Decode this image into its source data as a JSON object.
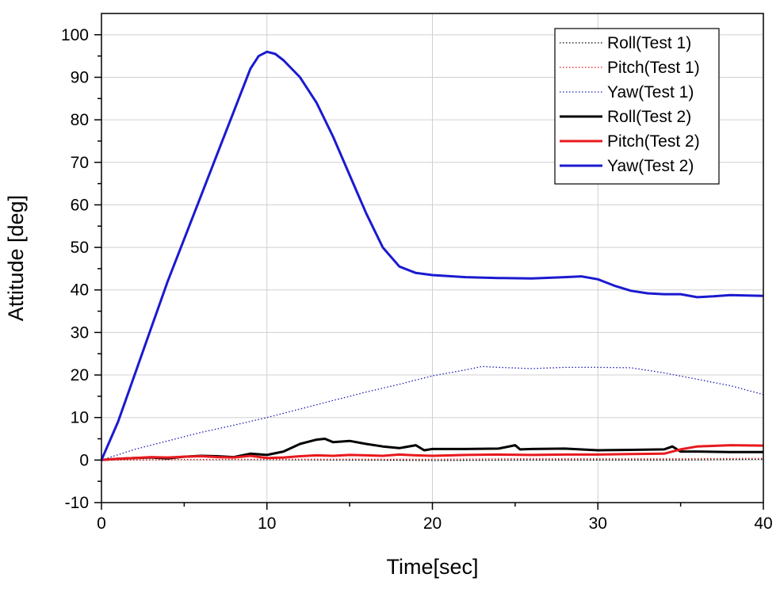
{
  "chart_data": {
    "type": "line",
    "title": "",
    "xlabel": "Time[sec]",
    "ylabel": "Attitude [deg]",
    "xlim": [
      0,
      40
    ],
    "ylim": [
      -10,
      105
    ],
    "xticks": [
      0,
      10,
      20,
      30,
      40
    ],
    "yticks": [
      -10,
      0,
      10,
      20,
      30,
      40,
      50,
      60,
      70,
      80,
      90,
      100
    ],
    "grid": true,
    "legend_position": "top-right",
    "series": [
      {
        "name": "Roll(Test 1)",
        "color": "#000000",
        "style": "dotted",
        "x": [
          0,
          5,
          10,
          15,
          20,
          25,
          30,
          35,
          40
        ],
        "y": [
          0,
          0.1,
          0.1,
          0,
          -0.1,
          0,
          0,
          0,
          0.2
        ]
      },
      {
        "name": "Pitch(Test 1)",
        "color": "#e8191d",
        "style": "dotted",
        "x": [
          0,
          5,
          10,
          15,
          20,
          25,
          30,
          35,
          40
        ],
        "y": [
          0,
          0.1,
          0.2,
          0.2,
          0.2,
          0.3,
          0.3,
          0.3,
          0.4
        ]
      },
      {
        "name": "Yaw(Test 1)",
        "color": "#1a1ab4",
        "style": "dotted",
        "x": [
          0,
          2,
          4,
          6,
          8,
          10,
          12,
          14,
          16,
          18,
          20,
          22,
          23,
          24,
          26,
          28,
          30,
          32,
          34,
          36,
          38,
          40
        ],
        "y": [
          0,
          2.5,
          4.5,
          6.5,
          8.2,
          10,
          12,
          14,
          16,
          17.8,
          19.8,
          21.2,
          22,
          21.8,
          21.5,
          21.8,
          21.8,
          21.7,
          20.5,
          19,
          17.5,
          15.4
        ]
      },
      {
        "name": "Roll(Test 2)",
        "color": "#000000",
        "style": "solid",
        "x": [
          0,
          1,
          2,
          3,
          4,
          5,
          6,
          7,
          8,
          9,
          10,
          11,
          12,
          13,
          13.5,
          14,
          15,
          16,
          17,
          18,
          19,
          19.5,
          20,
          22,
          24,
          25,
          25.3,
          26,
          28,
          30,
          32,
          34,
          34.5,
          35,
          36,
          38,
          40
        ],
        "y": [
          0,
          0.3,
          0.5,
          0.6,
          0.4,
          0.8,
          1,
          0.9,
          0.7,
          1.5,
          1.2,
          2.0,
          3.8,
          4.8,
          5.0,
          4.2,
          4.5,
          3.8,
          3.2,
          2.8,
          3.5,
          2.3,
          2.6,
          2.6,
          2.7,
          3.5,
          2.5,
          2.6,
          2.7,
          2.3,
          2.4,
          2.5,
          3.2,
          2.0,
          2.0,
          1.9,
          1.9
        ]
      },
      {
        "name": "Pitch(Test 2)",
        "color": "#e8191d",
        "style": "solid",
        "x": [
          0,
          1,
          2,
          3,
          4,
          5,
          6,
          7,
          8,
          9,
          10,
          11,
          12,
          13,
          14,
          15,
          16,
          17,
          18,
          19,
          20,
          22,
          24,
          26,
          28,
          30,
          32,
          34,
          35,
          36,
          38,
          40
        ],
        "y": [
          0,
          0.3,
          0.5,
          0.7,
          0.6,
          0.8,
          0.9,
          0.7,
          0.6,
          1.0,
          0.5,
          0.6,
          0.9,
          1.1,
          1.0,
          1.2,
          1.1,
          1.0,
          1.3,
          1.1,
          1.0,
          1.2,
          1.3,
          1.2,
          1.3,
          1.3,
          1.4,
          1.5,
          2.5,
          3.2,
          3.5,
          3.4
        ]
      },
      {
        "name": "Yaw(Test 2)",
        "color": "#1a1ad0",
        "style": "solid",
        "x": [
          0,
          1,
          2,
          3,
          4,
          5,
          6,
          7,
          8,
          9,
          9.5,
          10,
          10.5,
          11,
          12,
          13,
          14,
          15,
          16,
          17,
          18,
          19,
          20,
          22,
          24,
          26,
          28,
          29,
          30,
          31,
          32,
          33,
          34,
          35,
          36,
          37,
          38,
          40
        ],
        "y": [
          0,
          9,
          20,
          31,
          42,
          52,
          62,
          72,
          82,
          92,
          95,
          96,
          95.5,
          94,
          90,
          84,
          76,
          67,
          58,
          50,
          45.5,
          44,
          43.5,
          43,
          42.8,
          42.7,
          43,
          43.2,
          42.5,
          41,
          39.8,
          39.2,
          39,
          39,
          38.3,
          38.5,
          38.8,
          38.6
        ]
      }
    ]
  }
}
